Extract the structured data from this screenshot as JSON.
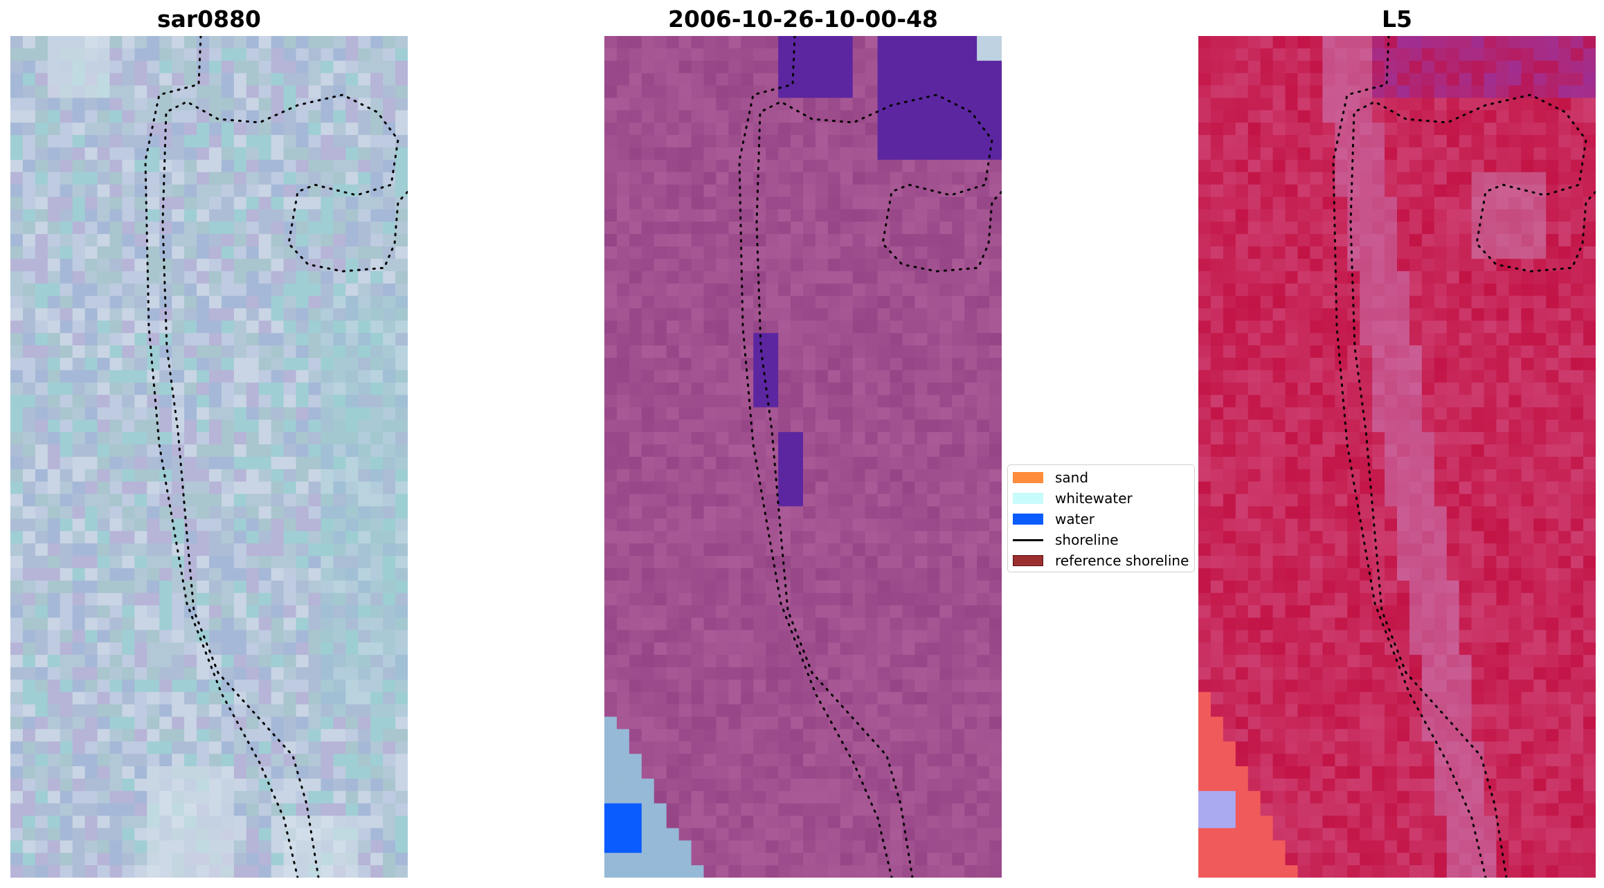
{
  "panels": [
    {
      "title": "sar0880",
      "palette": "sar",
      "base": "#afbcd6"
    },
    {
      "title": "2006-10-26-10-00-48",
      "palette": "classified",
      "base": "#9a4a86"
    },
    {
      "title": "L5",
      "palette": "l5",
      "base": "#c41f4e"
    }
  ],
  "legend": {
    "items": [
      {
        "label": "sand",
        "color": "#ff8c3b",
        "kind": "patch"
      },
      {
        "label": "whitewater",
        "color": "#c8fbfb",
        "kind": "patch"
      },
      {
        "label": "water",
        "color": "#0a5cff",
        "kind": "patch"
      },
      {
        "label": "shoreline",
        "color": "#000000",
        "kind": "line"
      },
      {
        "label": "reference shoreline",
        "color": "#9b2f2f",
        "kind": "patch"
      }
    ]
  }
}
